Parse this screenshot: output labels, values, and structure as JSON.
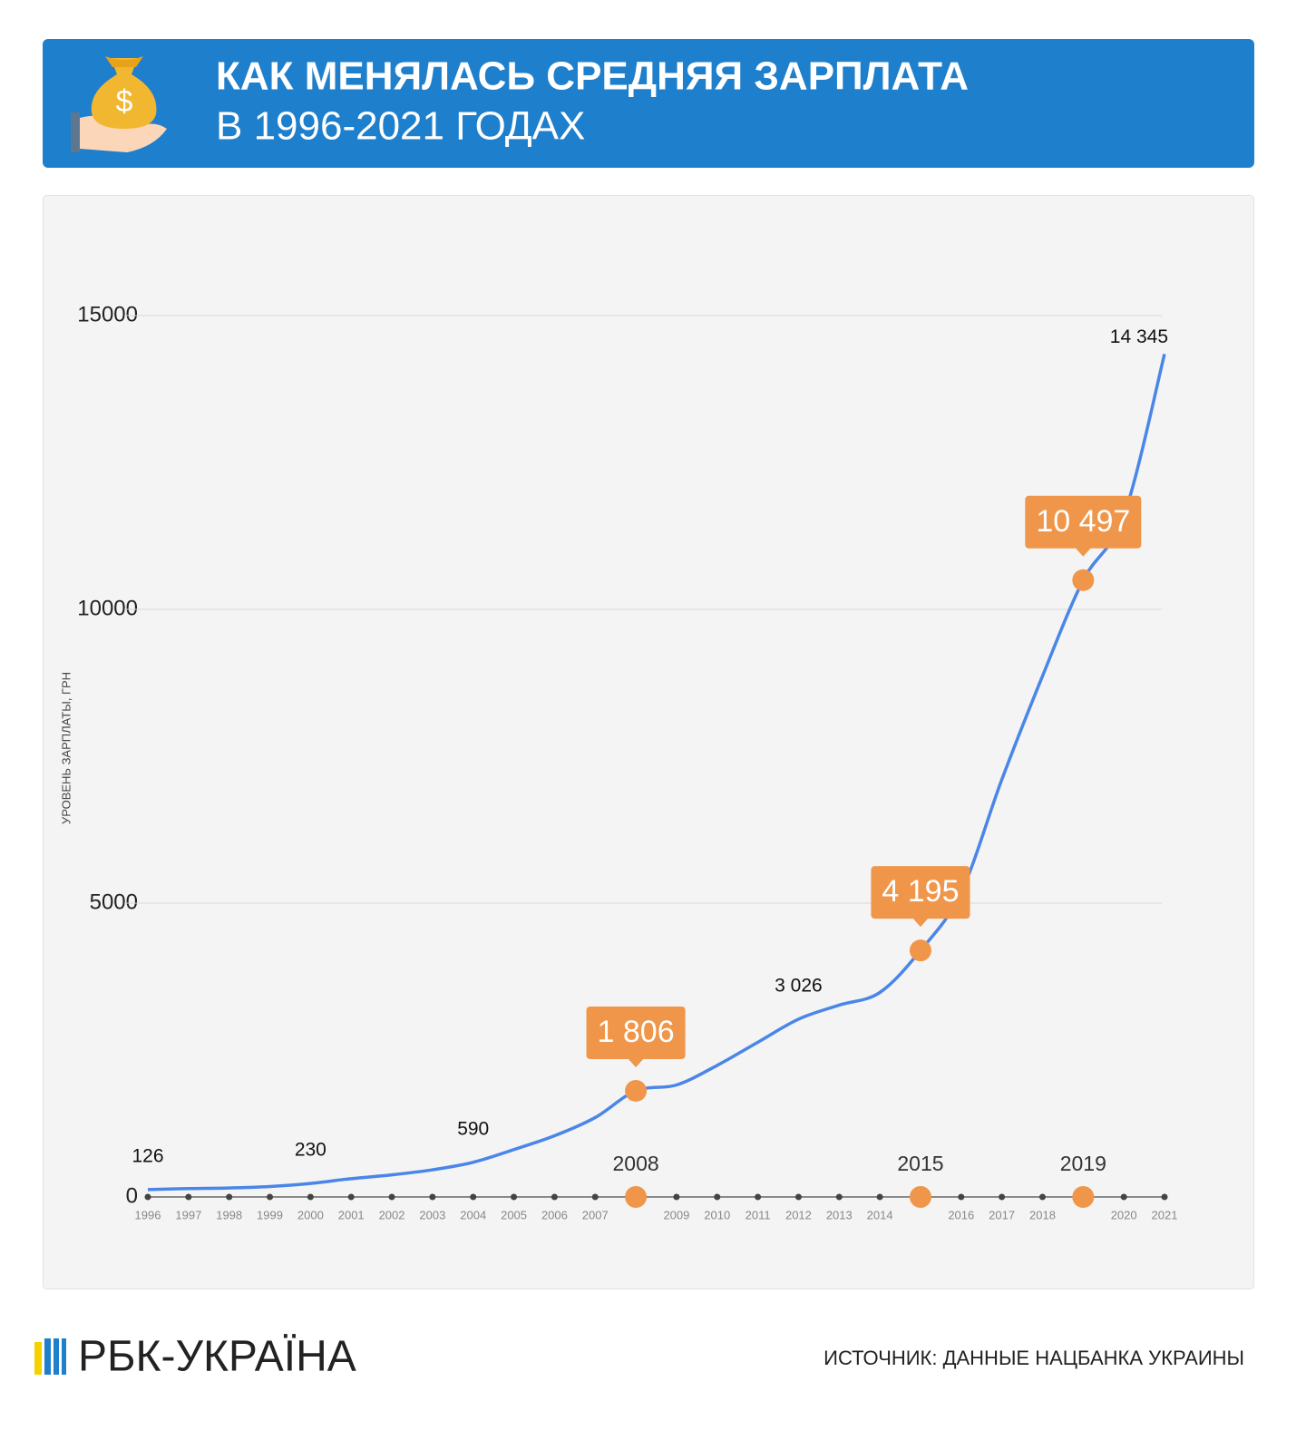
{
  "header": {
    "title": "КАК МЕНЯЛАСЬ СРЕДНЯЯ ЗАРПЛАТА",
    "subtitle": "В 1996-2021 ГОДАХ"
  },
  "chart_data": {
    "type": "line",
    "y_label": "УРОВЕНЬ ЗАРПЛАТЫ, ГРН",
    "categories": [
      "1996",
      "1997",
      "1998",
      "1999",
      "2000",
      "2001",
      "2002",
      "2003",
      "2004",
      "2005",
      "2006",
      "2007",
      "2008",
      "2009",
      "2010",
      "2011",
      "2012",
      "2013",
      "2014",
      "2015",
      "2016",
      "2017",
      "2018",
      "2019",
      "2020",
      "2021"
    ],
    "values": [
      126,
      143,
      153,
      178,
      230,
      311,
      376,
      462,
      590,
      806,
      1041,
      1351,
      1806,
      1906,
      2239,
      2633,
      3026,
      3265,
      3480,
      4195,
      5183,
      7104,
      8865,
      10497,
      11591,
      14345
    ],
    "value_labels": [
      "126",
      null,
      null,
      null,
      "230",
      null,
      null,
      null,
      "590",
      null,
      null,
      null,
      "1 806",
      null,
      null,
      null,
      "3 026",
      null,
      null,
      "4 195",
      null,
      null,
      null,
      "10 497",
      null,
      "14 345"
    ],
    "highlight_indices": [
      12,
      19,
      23
    ],
    "color": "#4a86e8",
    "highlight_color": "#f0964a",
    "ylim": [
      0,
      15000
    ],
    "yticks": [
      0,
      5000,
      10000,
      15000
    ],
    "grid": true
  },
  "footer": {
    "logo": "РБК-УКРАЇНА",
    "source": "ИСТОЧНИК: ДАННЫЕ НАЦБАНКА УКРАИНЫ"
  }
}
